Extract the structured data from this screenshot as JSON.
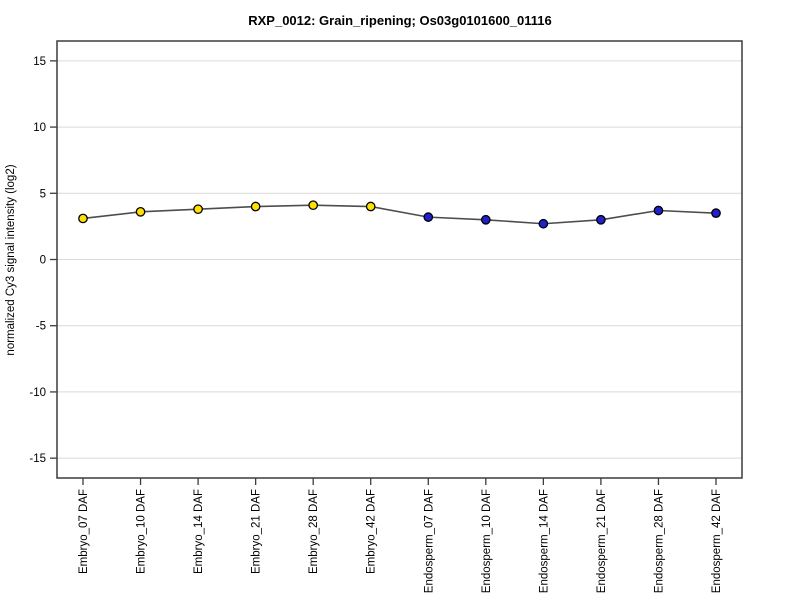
{
  "title": "RXP_0012: Grain_ripening; Os03g0101600_01116",
  "chart_data": {
    "type": "line",
    "title": "RXP_0012: Grain_ripening; Os03g0101600_01116",
    "xlabel": "",
    "ylabel": "normalized Cy3 signal intensity (log2)",
    "categories": [
      "Embryo_07 DAF",
      "Embryo_10 DAF",
      "Embryo_14 DAF",
      "Embryo_21 DAF",
      "Embryo_28 DAF",
      "Embryo_42 DAF",
      "Endosperm_07 DAF",
      "Endosperm_10 DAF",
      "Endosperm_14 DAF",
      "Endosperm_21 DAF",
      "Endosperm_28 DAF",
      "Endosperm_42 DAF"
    ],
    "values": [
      3.1,
      3.6,
      3.8,
      4.0,
      4.1,
      4.0,
      3.2,
      3.0,
      2.7,
      3.0,
      3.7,
      3.5
    ],
    "point_colors": [
      "#FFE000",
      "#FFE000",
      "#FFE000",
      "#FFE000",
      "#FFE000",
      "#FFE000",
      "#2020CC",
      "#2020CC",
      "#2020CC",
      "#2020CC",
      "#2020CC",
      "#2020CC"
    ],
    "point_groups": [
      {
        "name": "Embryo",
        "color": "#FFE000",
        "count": 6
      },
      {
        "name": "Endosperm",
        "color": "#2020CC",
        "count": 6
      }
    ],
    "ylim": [
      -16.5,
      16.5
    ],
    "yticks": [
      -15,
      -10,
      -5,
      0,
      5,
      10,
      15
    ],
    "grid": true,
    "legend": "none",
    "line_color": "#4d4d4d",
    "point_border_color": "#000000",
    "gridline_color": "#d9d9d9",
    "axis_border_color": "#3c3c3c",
    "background_color": "#ffffff"
  }
}
